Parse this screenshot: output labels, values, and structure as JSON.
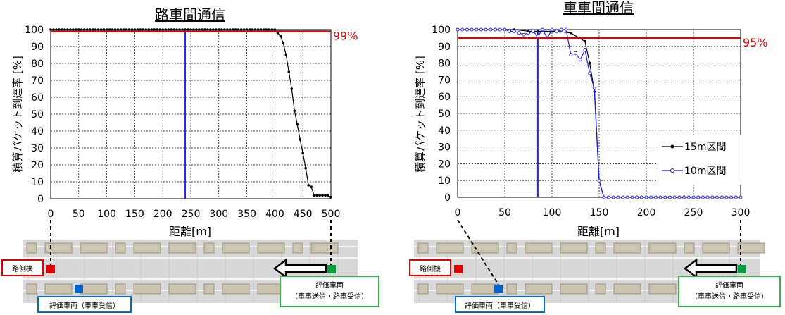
{
  "colors": {
    "threshold": "#e00000",
    "marker": "#2020ff",
    "series_15m": "#000000",
    "series_10m": "#1a1aff",
    "roadside_unit": "#e00000",
    "eval_vehicle_rx": "#0064c8",
    "eval_vehicle_tx": "#00a040",
    "road": "#d8d8d8",
    "car": "#ccc4b0"
  },
  "chart_data": [
    {
      "type": "line",
      "title": "路車間通信",
      "xlabel": "距離[m]",
      "ylabel": "積算パケット到達率 [%]",
      "xlim": [
        0,
        500
      ],
      "ylim": [
        0,
        100
      ],
      "xticks": [
        0,
        50,
        100,
        150,
        200,
        250,
        300,
        350,
        400,
        450,
        500
      ],
      "yticks": [
        0,
        10,
        20,
        30,
        40,
        50,
        60,
        70,
        80,
        90,
        100
      ],
      "grid": true,
      "threshold": {
        "value": 99,
        "label": "99%"
      },
      "marker_line_x": 240,
      "series": [
        {
          "key": "s15",
          "x": [
            0,
            5,
            10,
            15,
            20,
            25,
            30,
            35,
            40,
            45,
            50,
            55,
            60,
            65,
            70,
            75,
            80,
            85,
            90,
            95,
            100,
            105,
            110,
            115,
            120,
            125,
            130,
            135,
            140,
            145,
            150,
            155,
            160,
            165,
            170,
            175,
            180,
            185,
            190,
            195,
            200,
            205,
            210,
            215,
            220,
            225,
            230,
            235,
            240,
            245,
            250,
            255,
            260,
            265,
            270,
            275,
            280,
            285,
            290,
            295,
            300,
            305,
            310,
            315,
            320,
            325,
            330,
            335,
            340,
            345,
            350,
            355,
            360,
            365,
            370,
            375,
            380,
            385,
            390,
            395,
            400,
            405,
            410,
            415,
            420,
            425,
            430,
            435,
            440,
            445,
            450,
            455,
            460,
            465,
            470,
            475,
            480,
            485,
            490,
            495,
            500
          ],
          "y": [
            100,
            100,
            100,
            100,
            100,
            100,
            100,
            100,
            100,
            100,
            100,
            100,
            100,
            100,
            100,
            100,
            100,
            100,
            100,
            100,
            100,
            100,
            100,
            100,
            100,
            100,
            100,
            100,
            100,
            100,
            100,
            100,
            100,
            100,
            100,
            100,
            100,
            100,
            100,
            100,
            100,
            100,
            100,
            100,
            100,
            100,
            100,
            100,
            100,
            100,
            100,
            100,
            100,
            100,
            100,
            100,
            100,
            100,
            100,
            100,
            100,
            100,
            100,
            100,
            100,
            100,
            100,
            100,
            100,
            100,
            100,
            100,
            100,
            100,
            100,
            100,
            100,
            100,
            100,
            100,
            100,
            98,
            96,
            92,
            85,
            75,
            65,
            52,
            44,
            35,
            27,
            18,
            8,
            7,
            2,
            2,
            2,
            2,
            2,
            2,
            1
          ]
        }
      ]
    },
    {
      "type": "line",
      "title": "車車間通信",
      "xlabel": "距離[m]",
      "ylabel": "積算パケット到達率 [%]",
      "xlim": [
        0,
        300
      ],
      "ylim": [
        0,
        100
      ],
      "xticks": [
        0,
        50,
        100,
        150,
        200,
        250,
        300
      ],
      "yticks": [
        0,
        10,
        20,
        30,
        40,
        50,
        60,
        70,
        80,
        90,
        100
      ],
      "grid": true,
      "threshold": {
        "value": 95,
        "label": "95%"
      },
      "marker_line_x": 85,
      "legend_position": "right-middle",
      "series": [
        {
          "key": "s15",
          "name": "15m区間",
          "x": [
            0,
            15,
            30,
            45,
            60,
            75,
            90,
            105,
            120,
            135,
            140,
            145,
            150,
            155,
            160,
            175,
            190,
            205,
            220,
            235,
            250,
            265,
            280,
            295,
            300
          ],
          "y": [
            100,
            100,
            100,
            100,
            100,
            99,
            99,
            99,
            98,
            93,
            80,
            63,
            10,
            0,
            0,
            0,
            0,
            0,
            0,
            0,
            0,
            0,
            0,
            0,
            0
          ]
        },
        {
          "key": "s10",
          "name": "10m区間",
          "x": [
            0,
            5,
            10,
            15,
            20,
            25,
            30,
            35,
            40,
            45,
            50,
            55,
            60,
            65,
            70,
            75,
            80,
            85,
            90,
            95,
            100,
            105,
            110,
            115,
            120,
            125,
            130,
            135,
            140,
            145,
            150,
            155,
            160,
            165,
            170,
            175,
            180,
            185,
            190,
            195,
            200,
            205,
            210,
            215,
            220,
            225,
            230,
            235,
            240,
            245,
            250,
            255,
            260,
            265,
            270,
            275,
            280,
            285,
            290,
            295,
            300
          ],
          "y": [
            100,
            100,
            100,
            100,
            100,
            100,
            100,
            100,
            100,
            100,
            100,
            99,
            99,
            98,
            97,
            98,
            99,
            96,
            100,
            95,
            100,
            99,
            100,
            100,
            85,
            86,
            82,
            88,
            74,
            65,
            10,
            0,
            0,
            0,
            0,
            0,
            0,
            0,
            0,
            0,
            0,
            0,
            0,
            0,
            0,
            0,
            0,
            0,
            0,
            0,
            0,
            0,
            0,
            0,
            0,
            0,
            0,
            0,
            0,
            0,
            0
          ]
        }
      ]
    }
  ],
  "diagram": {
    "roadside_unit_label": "路側機",
    "eval_vehicle_rx_label": "評価車両（車車受信）",
    "eval_vehicle_tx_label_line1": "評価車両",
    "eval_vehicle_tx_label_line2": "（車車送信・路車受信）"
  }
}
